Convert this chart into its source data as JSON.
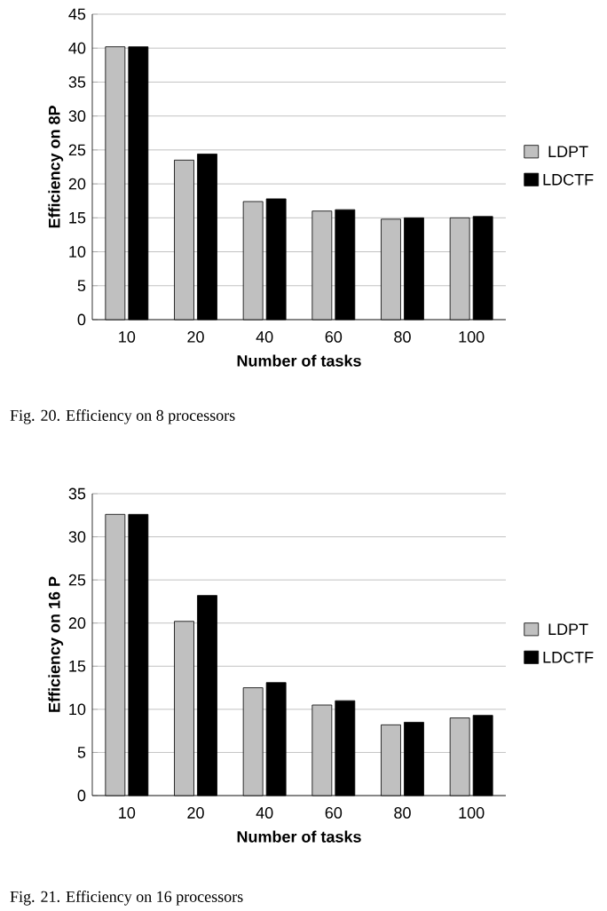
{
  "chart_data": [
    {
      "type": "bar",
      "xlabel": "Number of tasks",
      "ylabel": "Efficiency on 8P",
      "categories": [
        "10",
        "20",
        "40",
        "60",
        "80",
        "100"
      ],
      "series": [
        {
          "name": "LDPT",
          "color": "#c0c0c0",
          "values": [
            40.2,
            23.5,
            17.4,
            16.0,
            14.8,
            15.0
          ]
        },
        {
          "name": "LDCTF",
          "color": "#000000",
          "values": [
            40.2,
            24.4,
            17.8,
            16.2,
            15.0,
            15.2
          ]
        }
      ],
      "ylim": [
        0,
        45
      ],
      "yticks": [
        0,
        5,
        10,
        15,
        20,
        25,
        30,
        35,
        40,
        45
      ],
      "grid": "y",
      "legend": "right",
      "annotations": [
        "Fig. 20.  Efficiency on 8 processors"
      ]
    },
    {
      "type": "bar",
      "xlabel": "Number of tasks",
      "ylabel": "Efficiency on 16 P",
      "categories": [
        "10",
        "20",
        "40",
        "60",
        "80",
        "100"
      ],
      "series": [
        {
          "name": "LDPT",
          "color": "#c0c0c0",
          "values": [
            32.6,
            20.2,
            12.5,
            10.5,
            8.2,
            9.0
          ]
        },
        {
          "name": "LDCTF",
          "color": "#000000",
          "values": [
            32.6,
            23.2,
            13.1,
            11.0,
            8.5,
            9.3
          ]
        }
      ],
      "ylim": [
        0,
        35
      ],
      "yticks": [
        0,
        5,
        10,
        15,
        20,
        25,
        30,
        35
      ],
      "grid": "y",
      "legend": "right",
      "annotations": [
        "Fig. 21.  Efficiency on 16 processors"
      ]
    }
  ]
}
